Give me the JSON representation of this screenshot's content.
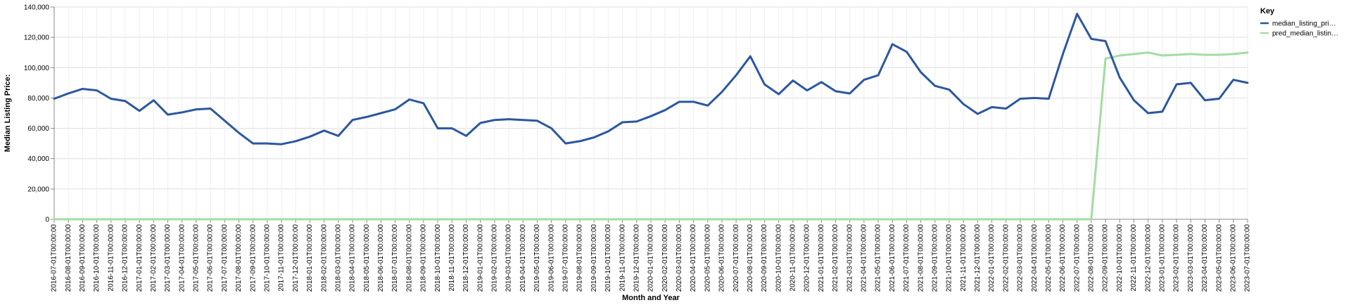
{
  "chart_data": {
    "type": "line",
    "xlabel": "Month and Year",
    "ylabel": "Median Listing Price:",
    "ylim": [
      0,
      140000
    ],
    "yticks": [
      "0",
      "20,000",
      "40,000",
      "60,000",
      "80,000",
      "100,000",
      "120,000",
      "140,000"
    ],
    "grid": true,
    "legend": {
      "title": "Key",
      "position": "top-right",
      "entries": [
        "median_listing_pri…",
        "pred_median_listin…"
      ]
    },
    "categories": [
      "2016-07-01T00:00:00",
      "2016-08-01T00:00:00",
      "2016-09-01T00:00:00",
      "2016-10-01T00:00:00",
      "2016-11-01T00:00:00",
      "2016-12-01T00:00:00",
      "2017-01-01T00:00:00",
      "2017-02-01T00:00:00",
      "2017-03-01T00:00:00",
      "2017-04-01T00:00:00",
      "2017-05-01T00:00:00",
      "2017-06-01T00:00:00",
      "2017-07-01T00:00:00",
      "2017-08-01T00:00:00",
      "2017-09-01T00:00:00",
      "2017-10-01T00:00:00",
      "2017-11-01T00:00:00",
      "2017-12-01T00:00:00",
      "2018-01-01T00:00:00",
      "2018-02-01T00:00:00",
      "2018-03-01T00:00:00",
      "2018-04-01T00:00:00",
      "2018-05-01T00:00:00",
      "2018-06-01T00:00:00",
      "2018-07-01T00:00:00",
      "2018-08-01T00:00:00",
      "2018-09-01T00:00:00",
      "2018-10-01T00:00:00",
      "2018-11-01T00:00:00",
      "2018-12-01T00:00:00",
      "2019-01-01T00:00:00",
      "2019-02-01T00:00:00",
      "2019-03-01T00:00:00",
      "2019-04-01T00:00:00",
      "2019-05-01T00:00:00",
      "2019-06-01T00:00:00",
      "2019-07-01T00:00:00",
      "2019-08-01T00:00:00",
      "2019-09-01T00:00:00",
      "2019-10-01T00:00:00",
      "2019-11-01T00:00:00",
      "2019-12-01T00:00:00",
      "2020-01-01T00:00:00",
      "2020-02-01T00:00:00",
      "2020-03-01T00:00:00",
      "2020-04-01T00:00:00",
      "2020-05-01T00:00:00",
      "2020-06-01T00:00:00",
      "2020-07-01T00:00:00",
      "2020-08-01T00:00:00",
      "2020-09-01T00:00:00",
      "2020-10-01T00:00:00",
      "2020-11-01T00:00:00",
      "2020-12-01T00:00:00",
      "2021-01-01T00:00:00",
      "2021-02-01T00:00:00",
      "2021-03-01T00:00:00",
      "2021-04-01T00:00:00",
      "2021-05-01T00:00:00",
      "2021-06-01T00:00:00",
      "2021-07-01T00:00:00",
      "2021-08-01T00:00:00",
      "2021-09-01T00:00:00",
      "2021-10-01T00:00:00",
      "2021-11-01T00:00:00",
      "2021-12-01T00:00:00",
      "2022-01-01T00:00:00",
      "2022-02-01T00:00:00",
      "2022-03-01T00:00:00",
      "2022-04-01T00:00:00",
      "2022-05-01T00:00:00",
      "2022-06-01T00:00:00",
      "2022-07-01T00:00:00",
      "2022-08-01T00:00:00",
      "2022-09-01T00:00:00",
      "2022-10-01T00:00:00",
      "2022-11-01T00:00:00",
      "2022-12-01T00:00:00",
      "2023-01-01T00:00:00",
      "2023-02-01T00:00:00",
      "2023-03-01T00:00:00",
      "2023-04-01T00:00:00",
      "2023-05-01T00:00:00",
      "2023-06-01T00:00:00",
      "2023-07-01T00:00:00"
    ],
    "series": [
      {
        "name": "median_listing_pri…",
        "color": "#2c57a0",
        "values": [
          79500,
          83000,
          86000,
          85000,
          79500,
          78000,
          71500,
          78500,
          69000,
          70500,
          72500,
          73000,
          65000,
          57000,
          50000,
          50000,
          49500,
          51500,
          54500,
          58500,
          55000,
          65500,
          67500,
          70000,
          72500,
          79000,
          76500,
          60000,
          60000,
          55000,
          63500,
          65500,
          66000,
          65500,
          65000,
          60000,
          50000,
          51500,
          54000,
          58000,
          64000,
          64500,
          68000,
          72000,
          77500,
          77500,
          75000,
          84000,
          95000,
          107500,
          89000,
          82500,
          91500,
          85000,
          90500,
          84500,
          83000,
          92000,
          95000,
          115500,
          110500,
          97000,
          88000,
          85500,
          76000,
          69500,
          74000,
          73000,
          79500,
          80000,
          79500,
          109000,
          135500,
          119000,
          117500,
          93500,
          78500,
          70000,
          71000,
          89000,
          90000,
          78500,
          79500,
          92000,
          90000
        ]
      },
      {
        "name": "pred_median_listin…",
        "color": "#a3dca0",
        "values": [
          0,
          0,
          0,
          0,
          0,
          0,
          0,
          0,
          0,
          0,
          0,
          0,
          0,
          0,
          0,
          0,
          0,
          0,
          0,
          0,
          0,
          0,
          0,
          0,
          0,
          0,
          0,
          0,
          0,
          0,
          0,
          0,
          0,
          0,
          0,
          0,
          0,
          0,
          0,
          0,
          0,
          0,
          0,
          0,
          0,
          0,
          0,
          0,
          0,
          0,
          0,
          0,
          0,
          0,
          0,
          0,
          0,
          0,
          0,
          0,
          0,
          0,
          0,
          0,
          0,
          0,
          0,
          0,
          0,
          0,
          0,
          0,
          0,
          0,
          106000,
          108000,
          109000,
          110000,
          108000,
          108500,
          109000,
          108500,
          108500,
          109000,
          110000
        ]
      }
    ]
  }
}
